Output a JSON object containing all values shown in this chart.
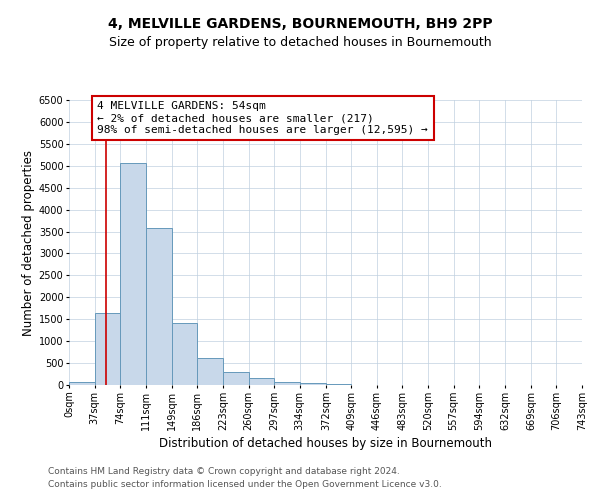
{
  "title": "4, MELVILLE GARDENS, BOURNEMOUTH, BH9 2PP",
  "subtitle": "Size of property relative to detached houses in Bournemouth",
  "xlabel": "Distribution of detached houses by size in Bournemouth",
  "ylabel": "Number of detached properties",
  "bin_edges": [
    0,
    37,
    74,
    111,
    149,
    186,
    223,
    260,
    297,
    334,
    372,
    409,
    446,
    483,
    520,
    557,
    594,
    632,
    669,
    706,
    743
  ],
  "bin_counts": [
    75,
    1640,
    5060,
    3580,
    1420,
    610,
    295,
    150,
    75,
    55,
    30,
    10,
    0,
    0,
    0,
    0,
    0,
    0,
    0,
    0
  ],
  "bar_color": "#c8d8ea",
  "bar_edgecolor": "#6699bb",
  "bar_linewidth": 0.7,
  "vline_x": 54,
  "vline_color": "#cc0000",
  "vline_linewidth": 1.2,
  "annotation_box_text": "4 MELVILLE GARDENS: 54sqm\n← 2% of detached houses are smaller (217)\n98% of semi-detached houses are larger (12,595) →",
  "box_edgecolor": "#cc0000",
  "ylim": [
    0,
    6500
  ],
  "yticks": [
    0,
    500,
    1000,
    1500,
    2000,
    2500,
    3000,
    3500,
    4000,
    4500,
    5000,
    5500,
    6000,
    6500
  ],
  "xtick_labels": [
    "0sqm",
    "37sqm",
    "74sqm",
    "111sqm",
    "149sqm",
    "186sqm",
    "223sqm",
    "260sqm",
    "297sqm",
    "334sqm",
    "372sqm",
    "409sqm",
    "446sqm",
    "483sqm",
    "520sqm",
    "557sqm",
    "594sqm",
    "632sqm",
    "669sqm",
    "706sqm",
    "743sqm"
  ],
  "footer_line1": "Contains HM Land Registry data © Crown copyright and database right 2024.",
  "footer_line2": "Contains public sector information licensed under the Open Government Licence v3.0.",
  "title_fontsize": 10,
  "subtitle_fontsize": 9,
  "axis_label_fontsize": 8.5,
  "tick_fontsize": 7,
  "annotation_fontsize": 8,
  "footer_fontsize": 6.5,
  "background_color": "#ffffff",
  "grid_color": "#c0d0e0",
  "grid_alpha": 1.0
}
